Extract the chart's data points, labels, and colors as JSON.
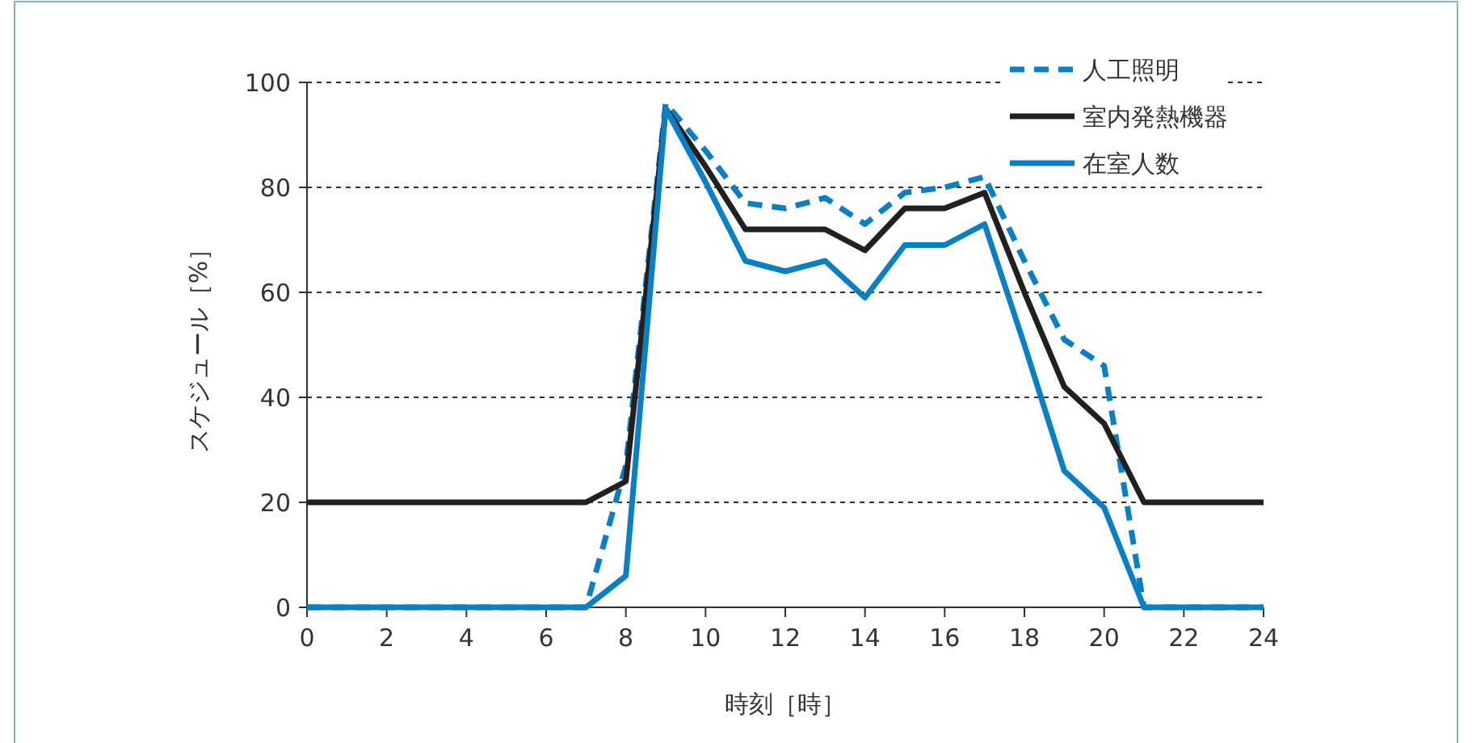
{
  "chart_data": {
    "type": "line",
    "xlabel": "時刻［時］",
    "ylabel": "スケジュール［%］",
    "x": [
      0,
      1,
      2,
      3,
      4,
      5,
      6,
      7,
      8,
      9,
      10,
      11,
      12,
      13,
      14,
      15,
      16,
      17,
      18,
      19,
      20,
      21,
      22,
      23,
      24
    ],
    "xlim": [
      0,
      24
    ],
    "xticks": [
      0,
      2,
      4,
      6,
      8,
      10,
      12,
      14,
      16,
      18,
      20,
      22,
      24
    ],
    "ylim": [
      0,
      100
    ],
    "yticks": [
      0,
      20,
      40,
      60,
      80,
      100
    ],
    "grid": "y",
    "legend": "top right",
    "series": [
      {
        "name": "人工照明",
        "color": "#0a7fc4",
        "line_style": "dashed",
        "values": [
          0,
          0,
          0,
          0,
          0,
          0,
          0,
          0,
          27,
          96,
          87,
          77,
          76,
          78,
          73,
          79,
          80,
          82,
          66,
          51,
          46,
          0,
          0,
          0,
          0
        ]
      },
      {
        "name": "室内発熱機器",
        "color": "#231f20",
        "line_style": "solid",
        "values": [
          20,
          20,
          20,
          20,
          20,
          20,
          20,
          20,
          24,
          95,
          84,
          72,
          72,
          72,
          68,
          76,
          76,
          79,
          60,
          42,
          35,
          20,
          20,
          20,
          20
        ]
      },
      {
        "name": "在室人数",
        "color": "#0a7fc4",
        "line_style": "solid",
        "values": [
          0,
          0,
          0,
          0,
          0,
          0,
          0,
          0,
          6,
          95,
          81,
          66,
          64,
          66,
          59,
          69,
          69,
          73,
          50,
          26,
          19,
          0,
          0,
          0,
          0
        ]
      }
    ]
  }
}
